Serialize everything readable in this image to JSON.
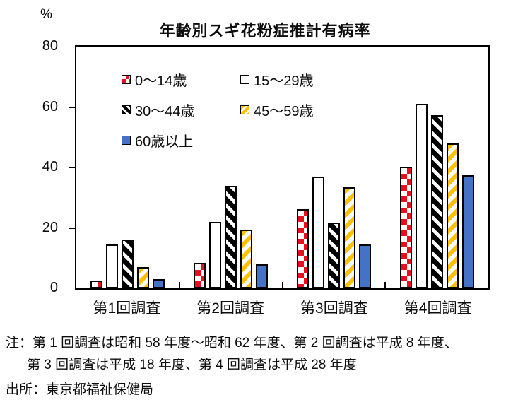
{
  "colors": {
    "red": "#e8101e",
    "yellow": "#ffc000",
    "blue": "#4472c4",
    "black": "#000000",
    "text": "#0d0d0d"
  },
  "chart_data": {
    "type": "bar",
    "title": "年齢別スギ花粉症推計有病率",
    "ylabel": "%",
    "xlabel": "",
    "ylim": [
      0,
      80
    ],
    "yticks": [
      0,
      20,
      40,
      60,
      80
    ],
    "grid": false,
    "legend_position": "top-left-inside",
    "categories": [
      "第1回調査",
      "第2回調査",
      "第3回調査",
      "第4回調査"
    ],
    "series": [
      {
        "name": "0～14歳",
        "style": "red-checker",
        "color": "#e8101e",
        "values": [
          2.5,
          8.5,
          26.2,
          40.3
        ]
      },
      {
        "name": "15～29歳",
        "style": "white",
        "color": "#ffffff",
        "values": [
          14.5,
          22.0,
          37.0,
          61.0
        ]
      },
      {
        "name": "30～44歳",
        "style": "black-diagonal",
        "color": "#000000",
        "values": [
          16.2,
          34.0,
          21.8,
          57.2
        ]
      },
      {
        "name": "45～59歳",
        "style": "yellow-diagonal",
        "color": "#ffc000",
        "values": [
          7.0,
          19.5,
          33.5,
          48.0
        ]
      },
      {
        "name": "60歳以上",
        "style": "blue-solid",
        "color": "#4472c4",
        "values": [
          3.0,
          8.0,
          14.4,
          37.4
        ]
      }
    ]
  },
  "footnotes": {
    "note_line1": "注：第 1 回調査は昭和 58 年度～昭和 62 年度、第 2 回調査は平成 8 年度、",
    "note_line2": "第 3 回調査は平成 18 年度、第 4 回調査は平成 28 年度",
    "source": "出所：東京都福祉保健局"
  }
}
